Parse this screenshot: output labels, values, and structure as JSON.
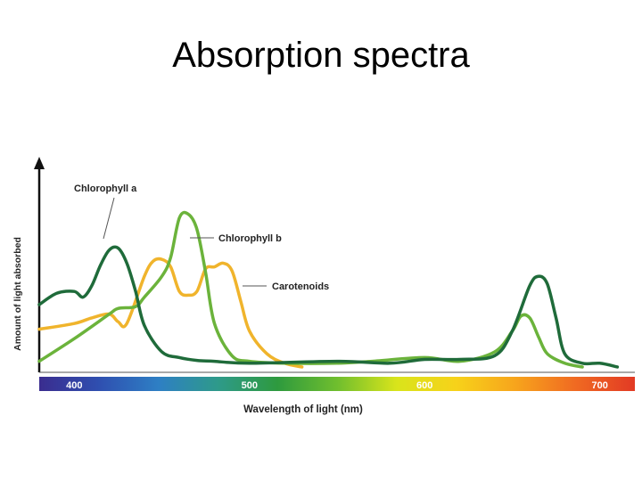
{
  "slide": {
    "title": "Absorption spectra"
  },
  "chart_data": {
    "type": "line",
    "title": "Absorption spectra",
    "xlabel": "Wavelength of light (nm)",
    "ylabel": "Amount of light absorbed",
    "xlim": [
      380,
      720
    ],
    "ylim": [
      0,
      1
    ],
    "x_ticks": [
      400,
      500,
      600,
      700
    ],
    "grid": false,
    "series": [
      {
        "name": "Chlorophyll a",
        "color": "#1f6b3a",
        "x": [
          380,
          390,
          400,
          405,
          410,
          415,
          420,
          425,
          430,
          435,
          440,
          450,
          460,
          470,
          480,
          500,
          550,
          580,
          600,
          620,
          640,
          650,
          660,
          665,
          670,
          675,
          680,
          690,
          700,
          710
        ],
        "y": [
          0.33,
          0.39,
          0.4,
          0.37,
          0.43,
          0.54,
          0.62,
          0.63,
          0.55,
          0.4,
          0.22,
          0.08,
          0.05,
          0.035,
          0.03,
          0.02,
          0.03,
          0.02,
          0.04,
          0.04,
          0.06,
          0.19,
          0.43,
          0.48,
          0.44,
          0.26,
          0.07,
          0.02,
          0.02,
          0.0
        ]
      },
      {
        "name": "Chlorophyll b",
        "color": "#6bb33b",
        "x": [
          380,
          400,
          420,
          425,
          435,
          440,
          450,
          455,
          460,
          465,
          470,
          475,
          480,
          490,
          500,
          520,
          550,
          570,
          600,
          620,
          640,
          650,
          655,
          660,
          665,
          670,
          680,
          690
        ],
        "y": [
          0.03,
          0.15,
          0.28,
          0.31,
          0.32,
          0.37,
          0.48,
          0.58,
          0.79,
          0.81,
          0.73,
          0.5,
          0.23,
          0.06,
          0.03,
          0.02,
          0.02,
          0.03,
          0.05,
          0.03,
          0.08,
          0.19,
          0.27,
          0.26,
          0.16,
          0.07,
          0.02,
          0.0
        ]
      },
      {
        "name": "Carotenoids",
        "color": "#f0b42c",
        "x": [
          380,
          400,
          410,
          420,
          425,
          430,
          440,
          445,
          450,
          455,
          460,
          465,
          470,
          475,
          480,
          485,
          490,
          495,
          500,
          510,
          520,
          530
        ],
        "y": [
          0.2,
          0.23,
          0.26,
          0.28,
          0.24,
          0.23,
          0.48,
          0.56,
          0.57,
          0.53,
          0.4,
          0.38,
          0.4,
          0.52,
          0.53,
          0.55,
          0.51,
          0.35,
          0.19,
          0.07,
          0.02,
          0.0
        ]
      }
    ],
    "annotations": [
      {
        "text": "Chlorophyll a",
        "series": "Chlorophyll a"
      },
      {
        "text": "Chlorophyll b",
        "series": "Chlorophyll b"
      },
      {
        "text": "Carotenoids",
        "series": "Carotenoids"
      }
    ],
    "spectrum_colors": [
      "#3a2d8f",
      "#2f4fb0",
      "#2e7fc4",
      "#2e9a8a",
      "#2e9a3e",
      "#6fbe2e",
      "#d9e41b",
      "#f7d21a",
      "#f7a41c",
      "#f06a22",
      "#e23a24"
    ]
  }
}
